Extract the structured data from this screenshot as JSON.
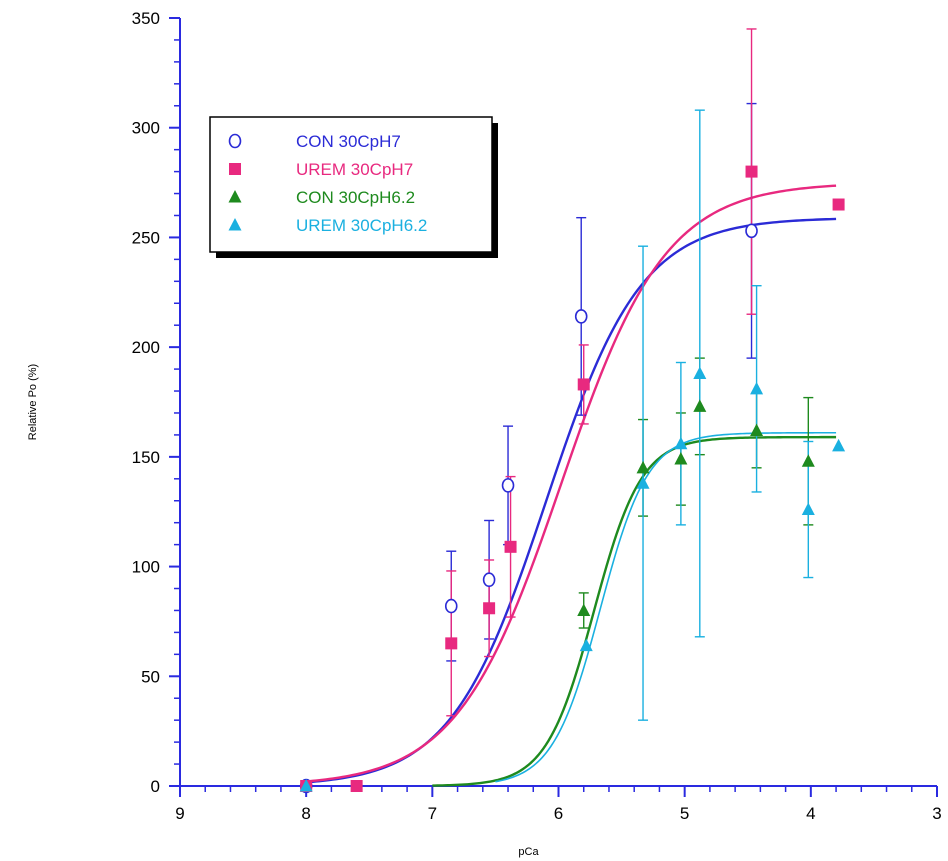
{
  "chart_data": {
    "type": "scatter",
    "title": "",
    "xlabel": "pCa",
    "ylabel": "Relative Po (%)",
    "xlim": [
      9,
      3
    ],
    "x_reversed": true,
    "ylim": [
      0,
      350
    ],
    "xticks": [
      9,
      8,
      7,
      6,
      5,
      4,
      3
    ],
    "yticks": [
      0,
      50,
      100,
      150,
      200,
      250,
      300,
      350
    ],
    "grid": false,
    "legend_position": "top-left",
    "series": [
      {
        "name": "CON 30CpH7",
        "color": "#2b2bd6",
        "marker": "open-circle",
        "points": [
          {
            "x": 8.0,
            "y": 0
          },
          {
            "x": 6.85,
            "y": 82,
            "err": 25
          },
          {
            "x": 6.55,
            "y": 94,
            "err": 27
          },
          {
            "x": 6.4,
            "y": 137,
            "err": 27
          },
          {
            "x": 5.82,
            "y": 214,
            "err": 45
          },
          {
            "x": 4.47,
            "y": 253,
            "err": 58
          }
        ],
        "fit": {
          "bottom": 0,
          "top": 259,
          "ec50": 6.1,
          "hill": 1.15,
          "x_from": 8.0,
          "x_to": 3.8
        }
      },
      {
        "name": "UREM 30CpH7",
        "color": "#e8297f",
        "marker": "filled-square",
        "points": [
          {
            "x": 8.0,
            "y": 0
          },
          {
            "x": 7.6,
            "y": 0
          },
          {
            "x": 6.85,
            "y": 65,
            "err": 33
          },
          {
            "x": 6.55,
            "y": 81,
            "err": 22
          },
          {
            "x": 6.38,
            "y": 109,
            "err": 32
          },
          {
            "x": 5.8,
            "y": 183,
            "err": 18
          },
          {
            "x": 4.47,
            "y": 280,
            "err": 65
          },
          {
            "x": 3.78,
            "y": 265
          }
        ],
        "fit": {
          "bottom": 0,
          "top": 275,
          "ec50": 5.98,
          "hill": 1.05,
          "x_from": 8.0,
          "x_to": 3.8
        }
      },
      {
        "name": "CON 30CpH6.2",
        "color": "#1e8a1e",
        "marker": "filled-triangle",
        "points": [
          {
            "x": 5.8,
            "y": 80,
            "err": 8
          },
          {
            "x": 5.33,
            "y": 145,
            "err": 22
          },
          {
            "x": 5.03,
            "y": 149,
            "err": 21
          },
          {
            "x": 4.88,
            "y": 173,
            "err": 22
          },
          {
            "x": 4.43,
            "y": 162,
            "err": 17
          },
          {
            "x": 4.02,
            "y": 148,
            "err": 29
          }
        ],
        "fit": {
          "bottom": 0,
          "top": 159,
          "ec50": 5.72,
          "hill": 2.3,
          "x_from": 7.0,
          "x_to": 3.8
        }
      },
      {
        "name": "UREM 30CpH6.2",
        "color": "#1ab0e0",
        "marker": "filled-triangle",
        "points": [
          {
            "x": 8.0,
            "y": 0
          },
          {
            "x": 5.78,
            "y": 64
          },
          {
            "x": 5.33,
            "y": 138,
            "err": 108
          },
          {
            "x": 5.03,
            "y": 156,
            "err": 37
          },
          {
            "x": 4.88,
            "y": 188,
            "err": 120
          },
          {
            "x": 4.43,
            "y": 181,
            "err": 47
          },
          {
            "x": 4.02,
            "y": 126,
            "err": 31
          },
          {
            "x": 3.78,
            "y": 155
          }
        ],
        "fit": {
          "bottom": 0,
          "top": 161,
          "ec50": 5.67,
          "hill": 2.3,
          "x_from": 6.5,
          "x_to": 3.8
        }
      }
    ]
  }
}
